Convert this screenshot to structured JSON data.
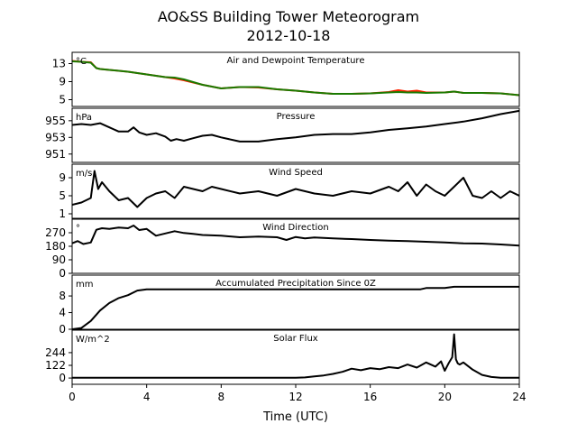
{
  "header": {
    "title_line1": "AO&SS Building Tower Meteorogram",
    "title_line2": "2012-10-18"
  },
  "chart_data": {
    "type": "line",
    "xlabel": "Time (UTC)",
    "xlim": [
      0,
      24
    ],
    "xticks": [
      0,
      4,
      8,
      12,
      16,
      20,
      24
    ],
    "panels": [
      {
        "title": "Air and Dewpoint Temperature",
        "unit": "°C",
        "ylim": [
          3.5,
          15.5
        ],
        "yticks": [
          5,
          9,
          13
        ],
        "series": [
          {
            "color": "#ff2200",
            "x": [
              0,
              0.5,
              1.0,
              1.3,
              1.5,
              2.0,
              3.0,
              4.0,
              5.0,
              5.5,
              6.0,
              7.0,
              8.0,
              9.0,
              10.0,
              11.0,
              12.0,
              13.0,
              14.0,
              15.0,
              16.0,
              17.0,
              17.5,
              18.0,
              18.5,
              19.0,
              20.0,
              20.5,
              21.0,
              22.0,
              23.0,
              24.0
            ],
            "y": [
              13.6,
              13.4,
              13.3,
              12.0,
              11.8,
              11.6,
              11.2,
              10.6,
              10.0,
              9.7,
              9.3,
              8.3,
              7.5,
              7.8,
              7.7,
              7.3,
              7.0,
              6.6,
              6.3,
              6.3,
              6.4,
              6.7,
              7.1,
              6.8,
              7.0,
              6.6,
              6.6,
              6.8,
              6.5,
              6.5,
              6.4,
              6.0
            ]
          },
          {
            "color": "#1a7a00",
            "x": [
              0,
              0.5,
              1.0,
              1.3,
              1.5,
              2.0,
              3.0,
              4.0,
              5.0,
              5.5,
              6.0,
              7.0,
              8.0,
              9.0,
              10.0,
              11.0,
              12.0,
              13.0,
              14.0,
              15.0,
              16.0,
              17.0,
              17.5,
              18.0,
              18.5,
              19.0,
              20.0,
              20.5,
              21.0,
              22.0,
              23.0,
              24.0
            ],
            "y": [
              13.5,
              13.4,
              13.2,
              12.0,
              11.8,
              11.6,
              11.2,
              10.6,
              10.0,
              9.9,
              9.5,
              8.3,
              7.5,
              7.8,
              7.8,
              7.3,
              7.0,
              6.6,
              6.3,
              6.3,
              6.4,
              6.6,
              6.7,
              6.6,
              6.6,
              6.5,
              6.6,
              6.8,
              6.5,
              6.5,
              6.4,
              6.0
            ]
          }
        ]
      },
      {
        "title": "Pressure",
        "unit": "hPa",
        "ylim": [
          950.0,
          956.5
        ],
        "yticks": [
          951,
          953,
          955
        ],
        "series": [
          {
            "color": "#000000",
            "x": [
              0,
              0.5,
              1.0,
              1.5,
              2.0,
              2.5,
              3.0,
              3.3,
              3.6,
              4.0,
              4.5,
              5.0,
              5.3,
              5.6,
              6.0,
              6.5,
              7.0,
              7.5,
              8.0,
              9.0,
              10.0,
              11.0,
              12.0,
              13.0,
              14.0,
              15.0,
              16.0,
              17.0,
              18.0,
              19.0,
              20.0,
              21.0,
              22.0,
              23.0,
              24.0
            ],
            "y": [
              954.5,
              954.6,
              954.5,
              954.7,
              954.2,
              953.7,
              953.7,
              954.2,
              953.6,
              953.3,
              953.5,
              953.1,
              952.6,
              952.8,
              952.6,
              952.9,
              953.2,
              953.3,
              953.0,
              952.5,
              952.5,
              952.8,
              953.0,
              953.3,
              953.4,
              953.4,
              953.6,
              953.9,
              954.1,
              954.3,
              954.6,
              954.9,
              955.3,
              955.8,
              956.2
            ]
          }
        ]
      },
      {
        "title": "Wind Speed",
        "unit": "m/s",
        "ylim": [
          0,
          12
        ],
        "yticks": [
          1,
          5,
          9
        ],
        "series": [
          {
            "color": "#000000",
            "x": [
              0,
              0.5,
              1.0,
              1.2,
              1.4,
              1.6,
              1.8,
              2.0,
              2.5,
              3.0,
              3.5,
              4.0,
              4.5,
              5.0,
              5.5,
              6.0,
              6.5,
              7.0,
              7.5,
              8.0,
              9.0,
              10.0,
              11.0,
              12.0,
              13.0,
              14.0,
              15.0,
              16.0,
              17.0,
              17.5,
              18.0,
              18.5,
              19.0,
              19.5,
              20.0,
              20.5,
              21.0,
              21.5,
              22.0,
              22.5,
              23.0,
              23.5,
              24.0
            ],
            "y": [
              3.0,
              3.5,
              4.5,
              10.5,
              6.5,
              8.0,
              7.0,
              6.0,
              4.0,
              4.5,
              2.5,
              4.5,
              5.5,
              6.0,
              4.5,
              7.0,
              6.5,
              6.0,
              7.0,
              6.5,
              5.5,
              6.0,
              5.0,
              6.5,
              5.5,
              5.0,
              6.0,
              5.5,
              7.0,
              6.0,
              8.0,
              5.0,
              7.5,
              6.0,
              5.0,
              7.0,
              9.0,
              5.0,
              4.5,
              6.0,
              4.5,
              6.0,
              5.0
            ]
          }
        ]
      },
      {
        "title": "Wind Direction",
        "unit": "°",
        "ylim": [
          0,
          360
        ],
        "yticks": [
          0,
          90,
          180,
          270
        ],
        "series": [
          {
            "color": "#000000",
            "x": [
              0,
              0.3,
              0.6,
              1.0,
              1.3,
              1.6,
              2.0,
              2.5,
              3.0,
              3.3,
              3.6,
              4.0,
              4.5,
              5.0,
              5.5,
              6.0,
              6.5,
              7.0,
              8.0,
              9.0,
              10.0,
              11.0,
              11.5,
              12.0,
              12.5,
              13.0,
              14.0,
              15.0,
              16.0,
              17.0,
              18.0,
              19.0,
              20.0,
              21.0,
              22.0,
              23.0,
              24.0
            ],
            "y": [
              200,
              215,
              195,
              205,
              290,
              300,
              295,
              305,
              300,
              318,
              288,
              295,
              250,
              265,
              280,
              268,
              262,
              255,
              250,
              240,
              245,
              240,
              222,
              242,
              232,
              238,
              232,
              228,
              222,
              218,
              215,
              210,
              205,
              200,
              198,
              192,
              185
            ]
          }
        ]
      },
      {
        "title": "Accumulated Precipitation Since 0Z",
        "unit": "mm",
        "ylim": [
          0,
          13
        ],
        "yticks": [
          0,
          4,
          8
        ],
        "series": [
          {
            "color": "#000000",
            "x": [
              0,
              0.5,
              1.0,
              1.5,
              2.0,
              2.5,
              3.0,
              3.5,
              4.0,
              6.0,
              8.0,
              10.0,
              12.0,
              14.0,
              16.0,
              18.0,
              18.7,
              19.0,
              20.0,
              20.5,
              21.0,
              22.0,
              24.0
            ],
            "y": [
              0,
              0.3,
              2.0,
              4.5,
              6.3,
              7.5,
              8.2,
              9.3,
              9.6,
              9.6,
              9.6,
              9.6,
              9.6,
              9.6,
              9.6,
              9.6,
              9.6,
              9.9,
              9.9,
              10.2,
              10.2,
              10.2,
              10.2
            ]
          }
        ]
      },
      {
        "title": "Solar Flux",
        "unit": "W/m^2",
        "ylim": [
          -60,
          460
        ],
        "yticks": [
          0,
          122,
          244
        ],
        "series": [
          {
            "color": "#000000",
            "x": [
              0,
              2,
              4,
              6,
              8,
              10,
              12,
              12.5,
              13.0,
              13.5,
              14.0,
              14.5,
              15.0,
              15.5,
              16.0,
              16.5,
              17.0,
              17.5,
              18.0,
              18.5,
              19.0,
              19.5,
              19.8,
              20.0,
              20.2,
              20.4,
              20.5,
              20.6,
              20.7,
              20.8,
              21.0,
              21.5,
              22.0,
              22.5,
              23.0,
              24.0
            ],
            "y": [
              3,
              3,
              3,
              2,
              2,
              2,
              2,
              6,
              15,
              25,
              40,
              60,
              90,
              75,
              95,
              85,
              105,
              95,
              130,
              100,
              150,
              110,
              160,
              70,
              140,
              200,
              420,
              180,
              140,
              130,
              150,
              80,
              30,
              10,
              3,
              2
            ]
          }
        ]
      }
    ]
  }
}
